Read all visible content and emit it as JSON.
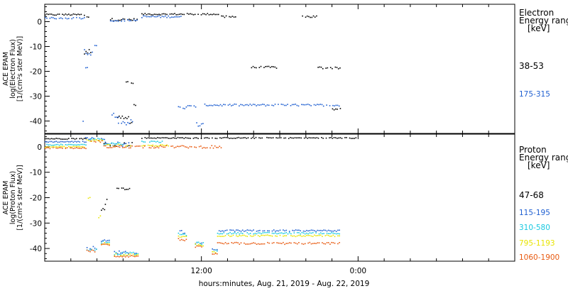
{
  "chart_data": [
    {
      "type": "scatter",
      "ylabel_lines": [
        "ACE EPAM",
        "log(Electron Flux)",
        "[1/(cm²s ster MeV)]"
      ],
      "ylim": [
        -45,
        7
      ],
      "yticks": [
        0,
        -10,
        -20,
        -30,
        -40
      ],
      "ytick_labels": [
        "0",
        "-10",
        "-20",
        "-30",
        "-40"
      ],
      "legend_title_lines": [
        "Electron",
        "Energy ranges",
        "[keV]"
      ],
      "series": [
        {
          "name": "38-53",
          "color": "#000000",
          "segments": [
            {
              "x": [
                0.0,
                3.0
              ],
              "y": 2.8,
              "spread": 0.3
            },
            {
              "x": [
                3.2,
                3.4
              ],
              "y": 2.0,
              "spread": 0.4
            },
            {
              "x": [
                5.0,
                7.1
              ],
              "y": 0.8,
              "spread": 0.5
            },
            {
              "x": [
                7.4,
                13.3
              ],
              "y": 3.0,
              "spread": 0.3
            },
            {
              "x": [
                13.5,
                14.6
              ],
              "y": 2.0,
              "spread": 0.6
            },
            {
              "x": [
                15.8,
                17.8
              ],
              "y": -18.4,
              "spread": 0.4
            },
            {
              "x": [
                19.7,
                20.8
              ],
              "y": 2.0,
              "spread": 0.5
            },
            {
              "x": [
                20.9,
                22.6
              ],
              "y": -18.6,
              "spread": 0.5
            },
            {
              "x": [
                22.0,
                22.6
              ],
              "y": -35.2,
              "spread": 0.4
            },
            {
              "x": [
                3.0,
                3.5
              ],
              "y": -12.4,
              "spread": 1.2
            },
            {
              "x": [
                6.2,
                6.4
              ],
              "y": -24.3,
              "spread": 0.3
            },
            {
              "x": [
                6.6,
                6.8
              ],
              "y": -24.6,
              "spread": 0.3
            },
            {
              "x": [
                6.8,
                7.0
              ],
              "y": -33.6,
              "spread": 0.3
            },
            {
              "x": [
                5.3,
                6.7
              ],
              "y": -39.5,
              "spread": 1.5
            }
          ]
        },
        {
          "name": "175-315",
          "color": "#1f5fd1",
          "segments": [
            {
              "x": [
                0.0,
                3.0
              ],
              "y": 1.4,
              "spread": 0.3
            },
            {
              "x": [
                5.0,
                7.1
              ],
              "y": 0.5,
              "spread": 0.4
            },
            {
              "x": [
                7.4,
                10.4
              ],
              "y": 2.0,
              "spread": 0.4
            },
            {
              "x": [
                3.0,
                3.6
              ],
              "y": -12.3,
              "spread": 1.2
            },
            {
              "x": [
                3.8,
                4.0
              ],
              "y": -9.8,
              "spread": 0.3
            },
            {
              "x": [
                3.1,
                3.4
              ],
              "y": -18.2,
              "spread": 0.4
            },
            {
              "x": [
                2.9,
                3.0
              ],
              "y": -40.0,
              "spread": 0.4
            },
            {
              "x": [
                5.0,
                5.6
              ],
              "y": -37.5,
              "spread": 1.0
            },
            {
              "x": [
                5.6,
                6.7
              ],
              "y": -40.5,
              "spread": 1.2
            },
            {
              "x": [
                10.2,
                11.6
              ],
              "y": -34.5,
              "spread": 1.0
            },
            {
              "x": [
                11.6,
                12.1
              ],
              "y": -41.5,
              "spread": 1.0
            },
            {
              "x": [
                12.1,
                22.6
              ],
              "y": -33.6,
              "spread": 0.4
            }
          ]
        }
      ],
      "series_labels": [
        "38-53",
        "175-315"
      ],
      "series_label_colors": [
        "#000000",
        "#1f5fd1"
      ]
    },
    {
      "type": "scatter",
      "ylabel_lines": [
        "ACE EPAM",
        "log(Proton Flux)",
        "[1/(cm²s ster MeV)]"
      ],
      "ylim": [
        -45,
        5
      ],
      "yticks": [
        0,
        -10,
        -20,
        -30,
        -40
      ],
      "ytick_labels": [
        "0",
        "-10",
        "-20",
        "-30",
        "-40"
      ],
      "legend_title_lines": [
        "Proton",
        "Energy ranges",
        "[keV]"
      ],
      "series": [
        {
          "name": "47-68",
          "color": "#000000",
          "segments": [
            {
              "x": [
                0.0,
                3.2
              ],
              "y": 3.2,
              "spread": 0.2
            },
            {
              "x": [
                4.5,
                6.7
              ],
              "y": 1.0,
              "spread": 0.8
            },
            {
              "x": [
                7.4,
                23.8
              ],
              "y": 3.5,
              "spread": 0.2
            },
            {
              "x": [
                5.5,
                6.5
              ],
              "y": -16.5,
              "spread": 0.4
            },
            {
              "x": [
                4.6,
                4.8
              ],
              "y": -22.0,
              "spread": 1.5
            },
            {
              "x": [
                4.3,
                4.6
              ],
              "y": -24.8,
              "spread": 1.0
            }
          ]
        },
        {
          "name": "115-195",
          "color": "#1f5fd1",
          "segments": [
            {
              "x": [
                0.0,
                3.2
              ],
              "y": 2.0,
              "spread": 0.2
            },
            {
              "x": [
                3.1,
                4.6
              ],
              "y": 3.3,
              "spread": 0.4
            },
            {
              "x": [
                4.6,
                6.5
              ],
              "y": 1.0,
              "spread": 1.0
            },
            {
              "x": [
                3.2,
                4.0
              ],
              "y": -39.8,
              "spread": 0.6
            },
            {
              "x": [
                4.3,
                5.0
              ],
              "y": -37.0,
              "spread": 0.4
            },
            {
              "x": [
                5.3,
                7.1
              ],
              "y": -41.5,
              "spread": 0.6
            },
            {
              "x": [
                10.2,
                10.8
              ],
              "y": -33.5,
              "spread": 0.7
            },
            {
              "x": [
                11.5,
                12.1
              ],
              "y": -37.5,
              "spread": 0.6
            },
            {
              "x": [
                12.8,
                13.2
              ],
              "y": -40.5,
              "spread": 0.4
            },
            {
              "x": [
                13.2,
                22.6
              ],
              "y": -33.0,
              "spread": 0.3
            }
          ]
        },
        {
          "name": "310-580",
          "color": "#18c8e0",
          "segments": [
            {
              "x": [
                0.0,
                3.2
              ],
              "y": 0.8,
              "spread": 0.2
            },
            {
              "x": [
                3.2,
                4.4
              ],
              "y": 3.0,
              "spread": 0.4
            },
            {
              "x": [
                4.5,
                6.0
              ],
              "y": 1.3,
              "spread": 0.5
            },
            {
              "x": [
                7.4,
                9.0
              ],
              "y": 2.0,
              "spread": 0.3
            },
            {
              "x": [
                3.2,
                4.0
              ],
              "y": -40.5,
              "spread": 0.5
            },
            {
              "x": [
                4.3,
                5.0
              ],
              "y": -37.5,
              "spread": 0.4
            },
            {
              "x": [
                5.3,
                7.1
              ],
              "y": -42.0,
              "spread": 0.5
            },
            {
              "x": [
                10.2,
                10.8
              ],
              "y": -34.5,
              "spread": 0.5
            },
            {
              "x": [
                11.5,
                12.1
              ],
              "y": -38.0,
              "spread": 0.5
            },
            {
              "x": [
                12.8,
                13.2
              ],
              "y": -41.0,
              "spread": 0.4
            },
            {
              "x": [
                13.2,
                22.6
              ],
              "y": -34.0,
              "spread": 0.3
            }
          ]
        },
        {
          "name": "795-1193",
          "color": "#e8e400",
          "segments": [
            {
              "x": [
                0.0,
                3.2
              ],
              "y": 0.0,
              "spread": 0.2
            },
            {
              "x": [
                3.2,
                4.4
              ],
              "y": 2.5,
              "spread": 0.4
            },
            {
              "x": [
                4.5,
                6.6
              ],
              "y": 0.5,
              "spread": 0.5
            },
            {
              "x": [
                7.4,
                9.5
              ],
              "y": 0.5,
              "spread": 0.3
            },
            {
              "x": [
                3.3,
                3.5
              ],
              "y": -20.0,
              "spread": 0.4
            },
            {
              "x": [
                4.1,
                4.3
              ],
              "y": -27.5,
              "spread": 0.4
            },
            {
              "x": [
                4.3,
                5.0
              ],
              "y": -38.0,
              "spread": 0.4
            },
            {
              "x": [
                5.3,
                7.1
              ],
              "y": -42.5,
              "spread": 0.4
            },
            {
              "x": [
                10.2,
                10.8
              ],
              "y": -35.5,
              "spread": 0.5
            },
            {
              "x": [
                11.5,
                12.1
              ],
              "y": -38.5,
              "spread": 0.5
            },
            {
              "x": [
                12.8,
                13.2
              ],
              "y": -41.5,
              "spread": 0.4
            },
            {
              "x": [
                13.2,
                22.6
              ],
              "y": -35.0,
              "spread": 0.3
            }
          ]
        },
        {
          "name": "1060-1900",
          "color": "#e85a10",
          "segments": [
            {
              "x": [
                0.0,
                3.2
              ],
              "y": -0.5,
              "spread": 0.2
            },
            {
              "x": [
                3.5,
                4.4
              ],
              "y": 2.2,
              "spread": 0.4
            },
            {
              "x": [
                4.5,
                13.6
              ],
              "y": 0.0,
              "spread": 0.5
            },
            {
              "x": [
                3.2,
                4.0
              ],
              "y": -41.0,
              "spread": 0.4
            },
            {
              "x": [
                4.3,
                5.0
              ],
              "y": -38.5,
              "spread": 0.4
            },
            {
              "x": [
                5.3,
                7.1
              ],
              "y": -43.0,
              "spread": 0.4
            },
            {
              "x": [
                10.2,
                10.8
              ],
              "y": -36.5,
              "spread": 0.5
            },
            {
              "x": [
                11.5,
                12.1
              ],
              "y": -39.5,
              "spread": 0.5
            },
            {
              "x": [
                12.8,
                13.2
              ],
              "y": -42.0,
              "spread": 0.4
            },
            {
              "x": [
                13.2,
                22.6
              ],
              "y": -38.0,
              "spread": 0.4
            }
          ]
        }
      ],
      "series_labels": [
        "47-68",
        "115-195",
        "310-580",
        "795-1193",
        "1060-1900"
      ],
      "series_label_colors": [
        "#000000",
        "#1f5fd1",
        "#18c8e0",
        "#e8e400",
        "#e85a10"
      ]
    }
  ],
  "xaxis": {
    "xlim": [
      0,
      36
    ],
    "major_ticks": [
      12,
      24
    ],
    "major_labels": [
      "12:00",
      "0:00"
    ],
    "minor_step": 2,
    "label": "hours:minutes, Aug. 21, 2019 - Aug. 22, 2019"
  }
}
